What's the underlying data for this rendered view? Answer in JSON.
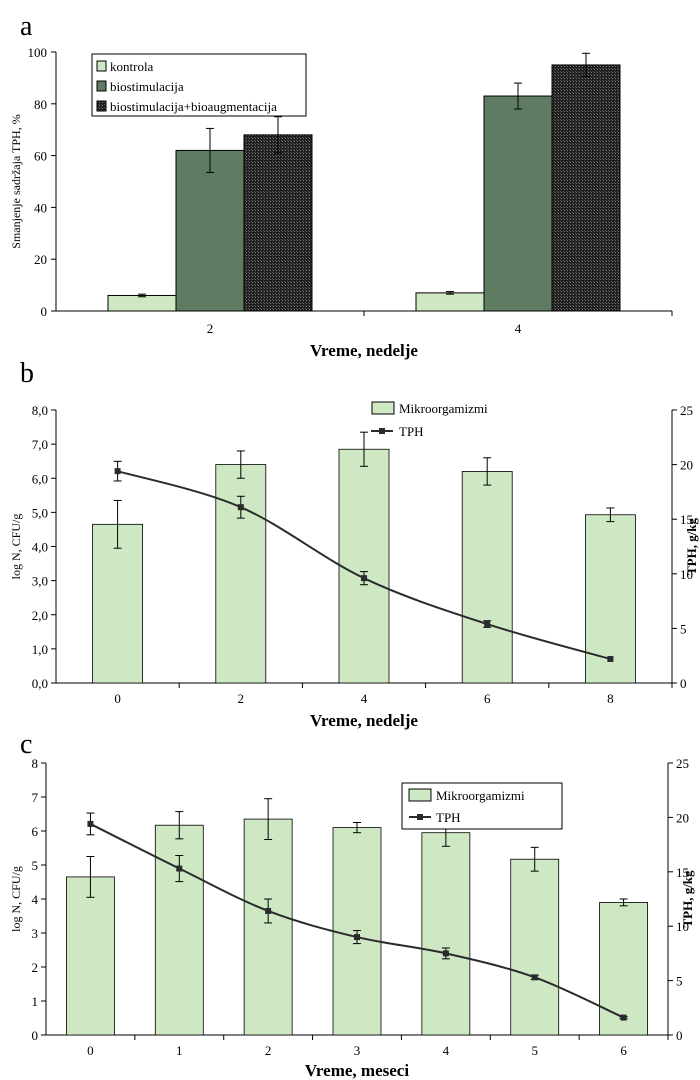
{
  "colors": {
    "kontrola": "#cfe8c4",
    "biostimulacija": "#5f7b62",
    "bioaugmentacija": "#1f1f1f",
    "bar_light": "#cfe8c4",
    "line": "#2b2b2b",
    "axis": "#000000"
  },
  "chart_data": [
    {
      "panel": "a",
      "type": "bar",
      "categories": [
        "2",
        "4"
      ],
      "series": [
        {
          "name": "kontrola",
          "values": [
            6,
            7
          ],
          "errors": [
            0.5,
            0.5
          ]
        },
        {
          "name": "biostimulacija",
          "values": [
            62,
            83
          ],
          "errors": [
            8.5,
            5
          ]
        },
        {
          "name": "biostimulacija+bioaugmentacija",
          "values": [
            68,
            95
          ],
          "errors": [
            7,
            4.5
          ]
        }
      ],
      "xlabel": "Vreme, nedelje",
      "ylabel": "Smanjenje sadržaja TPH, %",
      "ylim": [
        0,
        100
      ],
      "yticks": [
        "0",
        "20",
        "40",
        "60",
        "80",
        "100"
      ],
      "legend_position": "top-left",
      "grid": false
    },
    {
      "panel": "b",
      "type": "bar",
      "categories": [
        "0",
        "2",
        "4",
        "6",
        "8"
      ],
      "series": [
        {
          "name": "Mikroorgamizmi",
          "type": "bar",
          "axis": "left",
          "values": [
            4.65,
            6.4,
            6.85,
            6.2,
            4.93
          ],
          "errors": [
            0.7,
            0.4,
            0.5,
            0.4,
            0.2
          ]
        },
        {
          "name": "TPH",
          "type": "line",
          "axis": "right",
          "values": [
            19.4,
            16.1,
            9.6,
            5.4,
            2.2
          ],
          "errors": [
            0.9,
            1.0,
            0.6,
            0.3,
            0
          ]
        }
      ],
      "xlabel": "Vreme, nedelje",
      "ylabel": "log N, CFU/g",
      "y2label": "TPH, g/kg",
      "ylim": [
        0,
        8
      ],
      "y2lim": [
        0,
        25
      ],
      "yticks": [
        "0,0",
        "1,0",
        "2,0",
        "3,0",
        "4,0",
        "5,0",
        "6,0",
        "7,0",
        "8,0"
      ],
      "y2ticks": [
        "0",
        "5",
        "10",
        "15",
        "20",
        "25"
      ],
      "legend_position": "top-center",
      "grid": false
    },
    {
      "panel": "c",
      "type": "bar",
      "categories": [
        "0",
        "1",
        "2",
        "3",
        "4",
        "5",
        "6"
      ],
      "series": [
        {
          "name": "Mikroorgamizmi",
          "type": "bar",
          "axis": "left",
          "values": [
            4.65,
            6.17,
            6.35,
            6.1,
            5.95,
            5.17,
            3.9
          ],
          "errors": [
            0.6,
            0.4,
            0.6,
            0.15,
            0.4,
            0.35,
            0.1
          ]
        },
        {
          "name": "TPH",
          "type": "line",
          "axis": "right",
          "values": [
            19.4,
            15.3,
            11.4,
            9.0,
            7.5,
            5.3,
            1.6
          ],
          "errors": [
            1.0,
            1.2,
            1.1,
            0.6,
            0.5,
            0.2,
            0.1
          ]
        }
      ],
      "xlabel": "Vreme, meseci",
      "ylabel": "log N, CFU/g",
      "y2label": "TPH, g/kg",
      "ylim": [
        0,
        8
      ],
      "y2lim": [
        0,
        25
      ],
      "yticks": [
        "0",
        "1",
        "2",
        "3",
        "4",
        "5",
        "6",
        "7",
        "8"
      ],
      "y2ticks": [
        "0",
        "5",
        "10",
        "15",
        "20",
        "25"
      ],
      "legend_position": "top-right",
      "grid": false
    }
  ]
}
